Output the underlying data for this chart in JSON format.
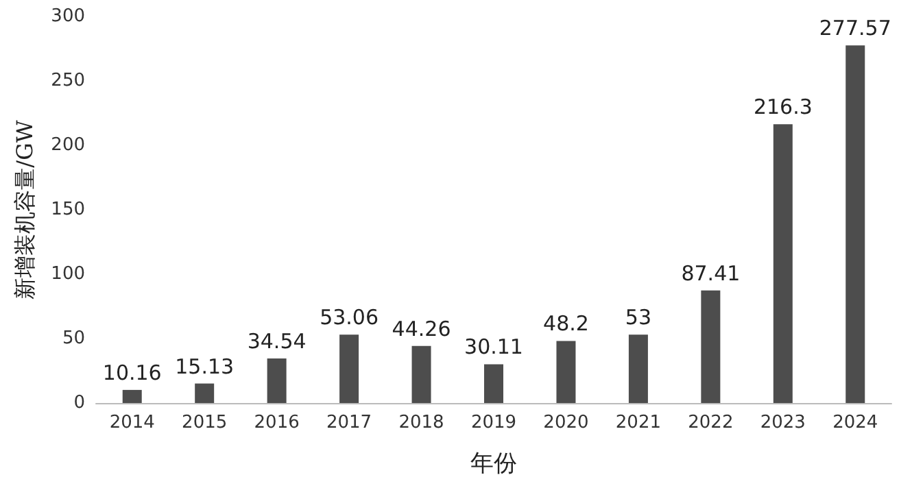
{
  "chart_data": {
    "type": "bar",
    "xlabel": "年份",
    "ylabel": "新增装机容量/GW",
    "categories": [
      "2014",
      "2015",
      "2016",
      "2017",
      "2018",
      "2019",
      "2020",
      "2021",
      "2022",
      "2023",
      "2024"
    ],
    "values": [
      10.16,
      15.13,
      34.54,
      53.06,
      44.26,
      30.11,
      48.2,
      53,
      87.41,
      216.3,
      277.57
    ],
    "color": "#4d4d4d",
    "ylim": [
      0,
      300
    ],
    "yticks": [
      0,
      50,
      100,
      150,
      200,
      250,
      300
    ],
    "grid": false,
    "data_labels": true
  }
}
